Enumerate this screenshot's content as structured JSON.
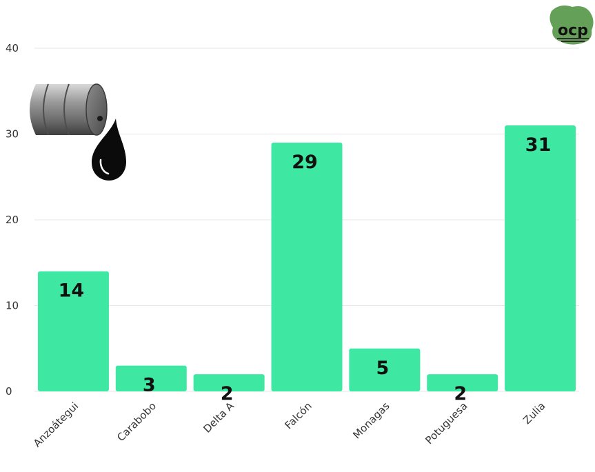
{
  "colors": {
    "bar": "#3ee8a2",
    "grid": "#e6e6e6",
    "label": "#111111"
  },
  "logo": {
    "text": "ocp",
    "icon": "ocp-logo-icon"
  },
  "illustration": {
    "icon": "oil-barrel-with-drop-icon"
  },
  "chart_data": {
    "type": "bar",
    "categories": [
      "Anzoátegui",
      "Carabobo",
      "Delta A",
      "Falcón",
      "Monagas",
      "Potuguesa",
      "Zulia"
    ],
    "values": [
      14,
      3,
      2,
      29,
      5,
      2,
      31
    ],
    "value_labels": [
      "14",
      "3",
      "2",
      "29",
      "5",
      "2",
      "31"
    ],
    "title": "",
    "xlabel": "",
    "ylabel": "",
    "ylim": [
      0,
      40
    ],
    "yticks": [
      0,
      10,
      20,
      30,
      40
    ],
    "ytick_labels": [
      "0",
      "10",
      "20",
      "30",
      "40"
    ],
    "grid": true,
    "legend": "none"
  }
}
